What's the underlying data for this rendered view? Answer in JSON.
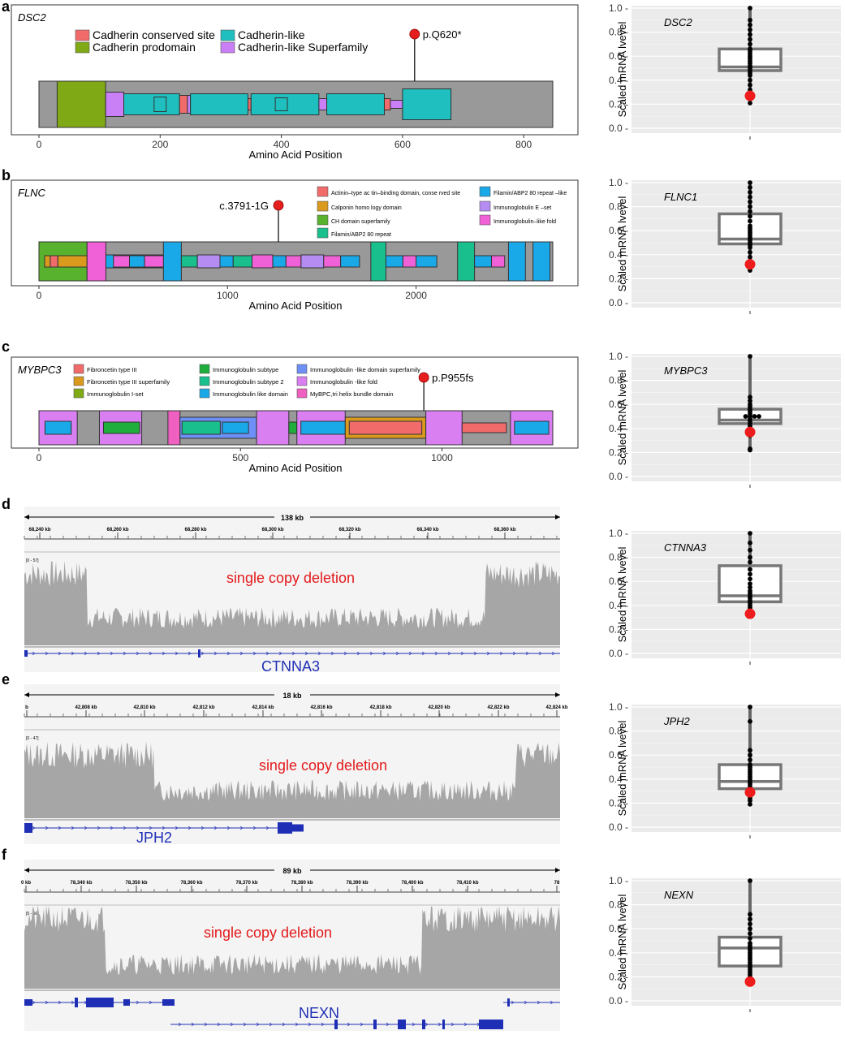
{
  "panels": [
    {
      "letter": "a",
      "gene": "DSC2",
      "x_label": "Amino Acid Position",
      "ticks": [
        "0",
        "200",
        "400",
        "600",
        "800"
      ],
      "variant": "p.Q620*",
      "legend": [
        "Cadherin conserved site",
        "Cadherin prodomain",
        "Cadherin-like",
        "Cadherin-like Superfamily"
      ],
      "legend_colors": [
        "#f26b6b",
        "#7fa915",
        "#1fbfbf",
        "#c97ff5"
      ]
    },
    {
      "letter": "b",
      "gene": "FLNC",
      "x_label": "Amino Acid Position",
      "ticks": [
        "0",
        "1000",
        "2000"
      ],
      "variant": "c.3791-1G",
      "legend": [
        "Actinin–type ac tin–binding domain, conse rved site",
        "Calponin homo logy domain",
        "CH domain  superfamily",
        "Filamin/ABP2 80 repeat",
        "Filamin/ABP2 80 repeat –like",
        "Immunoglobulin E –set",
        "Immunoglobulin–like fold"
      ],
      "legend_colors": [
        "#f26b6b",
        "#d99a1e",
        "#58b22e",
        "#1abf8e",
        "#1aa9e8",
        "#b58cf2",
        "#f060d6"
      ]
    },
    {
      "letter": "c",
      "gene": "MYBPC3",
      "x_label": "Amino Acid Position",
      "ticks": [
        "0",
        "500",
        "1000"
      ],
      "variant": "p.P955fs",
      "legend": [
        "Fibroncetin type III",
        "Fibroncetin type III superfamily",
        "Immunoglobulin I-set",
        "Immunoglobulin subtype",
        "Immunoglobulin subtype 2",
        "Immunoglobulin  like domain",
        "Immunoglobulin -like domain superfamily",
        "Immunoglobulin -like fold",
        "MyBPC,tri  helix bundle domain"
      ],
      "legend_colors": [
        "#f26b6b",
        "#d99a1e",
        "#7fa915",
        "#1fae3c",
        "#1abf8e",
        "#1aa9e8",
        "#6e8ff5",
        "#d97ff2",
        "#f060c0"
      ]
    },
    {
      "letter": "d",
      "span": "138 kb",
      "ticks": [
        "68,240 kb",
        "68,260 kb",
        "68,280 kb",
        "68,300 kb",
        "68,320 kb",
        "68,340 kb",
        "68,360 kb"
      ],
      "range": "[0 - 57]",
      "annotation": "single copy   deletion",
      "gene": "CTNNA3"
    },
    {
      "letter": "e",
      "span": "18 kb",
      "ticks": [
        "b",
        "42,808 kb",
        "42,810 kb",
        "42,812 kb",
        "42,814 kb",
        "42,816 kb",
        "42,818 kb",
        "42,820 kb",
        "42,822 kb",
        "42,824 kb"
      ],
      "range": "[0 - 47]",
      "annotation": "single copy   deletion",
      "gene": "JPH2"
    },
    {
      "letter": "f",
      "span": "89 kb",
      "ticks": [
        "0 kb",
        "78,340 kb",
        "78,350 kb",
        "78,360 kb",
        "78,370 kb",
        "78,380 kb",
        "78,390 kb",
        "78,400 kb",
        "78,410 kb",
        "78"
      ],
      "range": "[0 - 56]",
      "annotation": "single copy   deletion",
      "gene": "NEXN"
    }
  ],
  "chart_data": [
    {
      "type": "box",
      "gene": "DSC2",
      "ylabel": "Scaled mRNA lvevel",
      "ylim": [
        0,
        1
      ],
      "yticks": [
        "0.0 -",
        "0.2 -",
        "0.4 -",
        "0.6 -",
        "0.8 -",
        "1.0 -"
      ],
      "box": {
        "q1": 0.48,
        "median": 0.51,
        "q3": 0.66,
        "whisker_low": 0.21,
        "whisker_high": 1.0
      },
      "points": [
        1.0,
        0.9,
        0.86,
        0.82,
        0.78,
        0.74,
        0.7,
        0.66,
        0.64,
        0.62,
        0.6,
        0.58,
        0.56,
        0.54,
        0.52,
        0.5,
        0.48,
        0.46,
        0.44,
        0.4,
        0.36,
        0.32,
        0.26,
        0.21
      ],
      "highlight": 0.27
    },
    {
      "type": "box",
      "gene": "FLNC1",
      "ylabel": "Scaled mRNA lvevel",
      "ylim": [
        0,
        1
      ],
      "yticks": [
        "0.0 -",
        "0.2 -",
        "0.4 -",
        "0.6 -",
        "0.8 -",
        "1.0 -"
      ],
      "box": {
        "q1": 0.49,
        "median": 0.53,
        "q3": 0.74,
        "whisker_low": 0.26,
        "whisker_high": 1.0
      },
      "points": [
        1.0,
        0.96,
        0.92,
        0.88,
        0.84,
        0.8,
        0.76,
        0.72,
        0.68,
        0.64,
        0.62,
        0.6,
        0.58,
        0.56,
        0.54,
        0.52,
        0.5,
        0.48,
        0.46,
        0.42,
        0.38,
        0.34,
        0.3,
        0.27
      ],
      "highlight": 0.32
    },
    {
      "type": "box",
      "gene": "MYBPC3",
      "ylabel": "Scaled mRNA lvevel",
      "ylim": [
        0,
        1
      ],
      "yticks": [
        "0.0 -",
        "0.2 -",
        "0.4 -",
        "0.6 -",
        "0.8 -",
        "1.0 -"
      ],
      "box": {
        "q1": 0.44,
        "median": 0.47,
        "q3": 0.56,
        "whisker_low": 0.22,
        "whisker_high": 1.0
      },
      "points": [
        1.0,
        0.66,
        0.63,
        0.6,
        0.58,
        0.56,
        0.54,
        0.52,
        0.5,
        0.5,
        0.5,
        0.5,
        0.48,
        0.46,
        0.44,
        0.42,
        0.4,
        0.38,
        0.36,
        0.34,
        0.23,
        0.22
      ],
      "highlight": 0.37
    },
    {
      "type": "box",
      "gene": "CTNNA3",
      "ylabel": "Scaled mRNA lvevel",
      "ylim": [
        0,
        1
      ],
      "yticks": [
        "0.0 -",
        "0.2 -",
        "0.4 -",
        "0.6 -",
        "0.8 -",
        "1.0 -"
      ],
      "box": {
        "q1": 0.43,
        "median": 0.48,
        "q3": 0.73,
        "whisker_low": 0.3,
        "whisker_high": 1.0
      },
      "points": [
        1.0,
        0.92,
        0.86,
        0.8,
        0.76,
        0.7,
        0.66,
        0.62,
        0.58,
        0.55,
        0.52,
        0.5,
        0.48,
        0.46,
        0.44,
        0.42,
        0.4,
        0.38,
        0.36,
        0.34
      ],
      "highlight": 0.33
    },
    {
      "type": "box",
      "gene": "JPH2",
      "ylabel": "Scaled mRNA lvevel",
      "ylim": [
        0,
        1
      ],
      "yticks": [
        "0.0 -",
        "0.2 -",
        "0.4 -",
        "0.6 -",
        "0.8 -",
        "1.0 -"
      ],
      "box": {
        "q1": 0.32,
        "median": 0.38,
        "q3": 0.52,
        "whisker_low": 0.19,
        "whisker_high": 1.0
      },
      "points": [
        1.0,
        0.88,
        0.64,
        0.6,
        0.56,
        0.52,
        0.5,
        0.48,
        0.46,
        0.44,
        0.42,
        0.4,
        0.38,
        0.36,
        0.34,
        0.32,
        0.3,
        0.28,
        0.26,
        0.24,
        0.22,
        0.19
      ],
      "highlight": 0.29
    },
    {
      "type": "box",
      "gene": "NEXN",
      "ylabel": "Scaled mRNA lvevel",
      "ylim": [
        0,
        1
      ],
      "yticks": [
        "0.0 -",
        "0.2 -",
        "0.4 -",
        "0.6 -",
        "0.8 -",
        "1.0 -"
      ],
      "box": {
        "q1": 0.29,
        "median": 0.44,
        "q3": 0.53,
        "whisker_low": 0.15,
        "whisker_high": 1.0
      },
      "points": [
        1.0,
        0.72,
        0.68,
        0.64,
        0.6,
        0.56,
        0.52,
        0.48,
        0.46,
        0.44,
        0.42,
        0.4,
        0.38,
        0.36,
        0.34,
        0.32,
        0.3,
        0.28,
        0.26,
        0.24,
        0.22,
        0.2,
        0.18
      ],
      "highlight": 0.16
    }
  ]
}
